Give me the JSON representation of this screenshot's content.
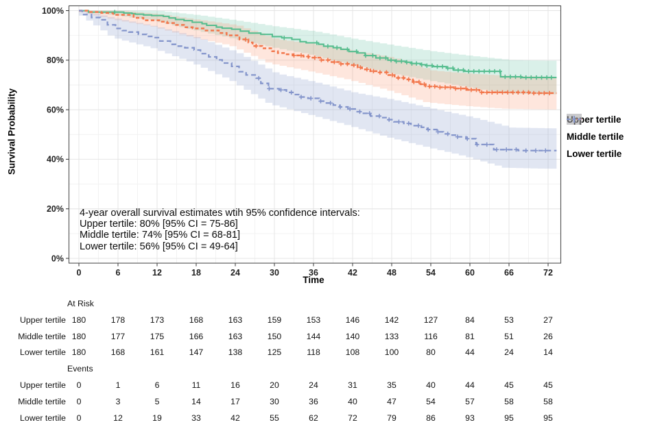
{
  "chart_data": {
    "type": "line",
    "subtype": "kaplan-meier-survival",
    "title": "",
    "xlabel": "Time",
    "ylabel": "Survival Probability",
    "xlim": [
      0,
      73.5
    ],
    "ylim": [
      0,
      100
    ],
    "grid": true,
    "legend_position": "right",
    "x_ticks": {
      "values": [
        0,
        6,
        12,
        18,
        24,
        30,
        36,
        42,
        48,
        54,
        60,
        66,
        72
      ],
      "labels": [
        "0",
        "6",
        "12",
        "18",
        "24",
        "30",
        "36",
        "42",
        "48",
        "54",
        "60",
        "66",
        "72"
      ]
    },
    "y_ticks": {
      "values": [
        100,
        80,
        60,
        40,
        20,
        0
      ],
      "labels": [
        "100%",
        "80%",
        "60%",
        "40%",
        "20%",
        "0%"
      ]
    },
    "time_anchors": [
      0,
      6,
      12,
      18,
      24,
      30,
      36,
      42,
      48,
      54,
      60,
      66,
      72
    ],
    "series": [
      {
        "name": "Upper tertile",
        "color": "#55bd8e",
        "ribbon_color": "rgba(102,194,165,0.24)",
        "dash": "",
        "survival_pct": [
          100,
          99.4,
          98.0,
          95.3,
          92.5,
          89.5,
          87.0,
          83.5,
          80.0,
          77.8,
          75.5,
          73.3,
          73.0
        ],
        "ci_lower_pct": [
          100,
          98.2,
          96.1,
          92.4,
          89.0,
          85.4,
          82.4,
          78.4,
          75.0,
          72.0,
          69.3,
          66.6,
          66.2
        ],
        "ci_upper_pct": [
          100,
          100,
          99.9,
          98.2,
          96.0,
          93.6,
          91.6,
          88.6,
          86.0,
          83.6,
          81.7,
          80.0,
          79.8
        ],
        "censor_times": [
          5.5,
          31.5,
          36.5,
          38.2,
          39.6,
          41.2,
          42.6,
          44,
          45.1,
          46.2,
          47.1,
          47.9,
          48.7,
          49.5,
          50.3,
          51.1,
          51.8,
          52.6,
          53.4,
          54.2,
          55,
          55.8,
          56.6,
          57.4,
          58.2,
          59,
          59.8,
          60.6,
          61.4,
          62.2,
          63,
          63.8,
          64.6,
          65.4,
          66.2,
          67,
          67.8,
          68.6,
          69.4,
          70.2,
          71,
          71.8,
          72.5
        ]
      },
      {
        "name": "Middle tertile",
        "color": "#f2764b",
        "ribbon_color": "rgba(252,141,98,0.22)",
        "dash": "5 3.5",
        "survival_pct": [
          100,
          98.3,
          96.1,
          92.8,
          90.0,
          83.6,
          81.0,
          78.0,
          74.0,
          69.4,
          68.0,
          67.0,
          66.7
        ],
        "ci_lower_pct": [
          100,
          96.4,
          93.6,
          89.3,
          85.9,
          78.7,
          75.6,
          72.2,
          68.0,
          63.0,
          61.5,
          60.4,
          60.1
        ],
        "ci_upper_pct": [
          100,
          100,
          98.6,
          96.3,
          94.1,
          88.5,
          86.4,
          83.8,
          81.0,
          75.8,
          74.5,
          73.6,
          73.3
        ],
        "censor_times": [
          25.6,
          27.2,
          33,
          34.1,
          35.2,
          36.2,
          37.2,
          38.2,
          39.2,
          40.2,
          41.2,
          42.2,
          43.2,
          44.2,
          45.2,
          46.2,
          47.2,
          48.1,
          49,
          49.8,
          50.6,
          51.4,
          52.2,
          53,
          53.8,
          54.6,
          55.4,
          56.2,
          57,
          57.8,
          58.6,
          59.4,
          60.2,
          61,
          61.8,
          62.6,
          63.4,
          64.2,
          65,
          65.8,
          66.6,
          67.4,
          68.2,
          69,
          69.8,
          70.6,
          71.4,
          72.2
        ]
      },
      {
        "name": "Lower tertile",
        "color": "#8495cb",
        "ribbon_color": "rgba(141,160,203,0.26)",
        "dash": "7 4.5",
        "survival_pct": [
          100,
          92.8,
          89.1,
          84.1,
          77.5,
          68.5,
          64.6,
          60.3,
          56.0,
          52.0,
          48.3,
          43.9,
          43.5
        ],
        "ci_lower_pct": [
          100,
          89.1,
          84.9,
          79.1,
          71.9,
          62.3,
          58.1,
          53.7,
          49.0,
          45.0,
          41.2,
          36.6,
          36.2
        ],
        "ci_upper_pct": [
          100,
          96.5,
          93.3,
          89.1,
          83.1,
          74.7,
          71.1,
          66.9,
          64.0,
          60.4,
          57.0,
          52.8,
          52.5
        ],
        "censor_times": [
          27.6,
          29.2,
          31,
          32.6,
          34.1,
          35.6,
          37.1,
          38.6,
          40.1,
          41.6,
          43.1,
          44.6,
          46.1,
          47.6,
          49.1,
          50.6,
          52.1,
          53.6,
          55.1,
          56.6,
          58.1,
          59.6,
          61.1,
          62.6,
          64.1,
          65.6,
          67.1,
          68.6,
          70.1,
          71.6
        ]
      }
    ],
    "annotation": {
      "lines": [
        "4-year overall survival estimates wtih 95% confidence intervals:",
        "Upper tertile: 80% [95% CI = 75-86]",
        "Middle tertile: 74% [95% CI = 68-81]",
        "Lower tertile: 56% [95% CI = 49-64]"
      ]
    }
  },
  "risk_table": {
    "sections": [
      {
        "header": "At Risk",
        "rows": [
          {
            "label": "Upper tertile",
            "values": [
              180,
              178,
              173,
              168,
              163,
              159,
              153,
              146,
              142,
              127,
              84,
              53,
              27
            ]
          },
          {
            "label": "Middle tertile",
            "values": [
              180,
              177,
              175,
              166,
              163,
              150,
              144,
              140,
              133,
              116,
              81,
              51,
              26
            ]
          },
          {
            "label": "Lower tertile",
            "values": [
              180,
              168,
              161,
              147,
              138,
              125,
              118,
              108,
              100,
              80,
              44,
              24,
              14
            ]
          }
        ]
      },
      {
        "header": "Events",
        "rows": [
          {
            "label": "Upper tertile",
            "values": [
              0,
              1,
              6,
              11,
              16,
              20,
              24,
              31,
              35,
              40,
              44,
              45,
              45
            ]
          },
          {
            "label": "Middle tertile",
            "values": [
              0,
              3,
              5,
              14,
              17,
              30,
              36,
              40,
              47,
              54,
              57,
              58,
              58
            ]
          },
          {
            "label": "Lower tertile",
            "values": [
              0,
              12,
              19,
              33,
              42,
              55,
              62,
              72,
              79,
              86,
              93,
              95,
              95
            ]
          }
        ]
      }
    ]
  }
}
